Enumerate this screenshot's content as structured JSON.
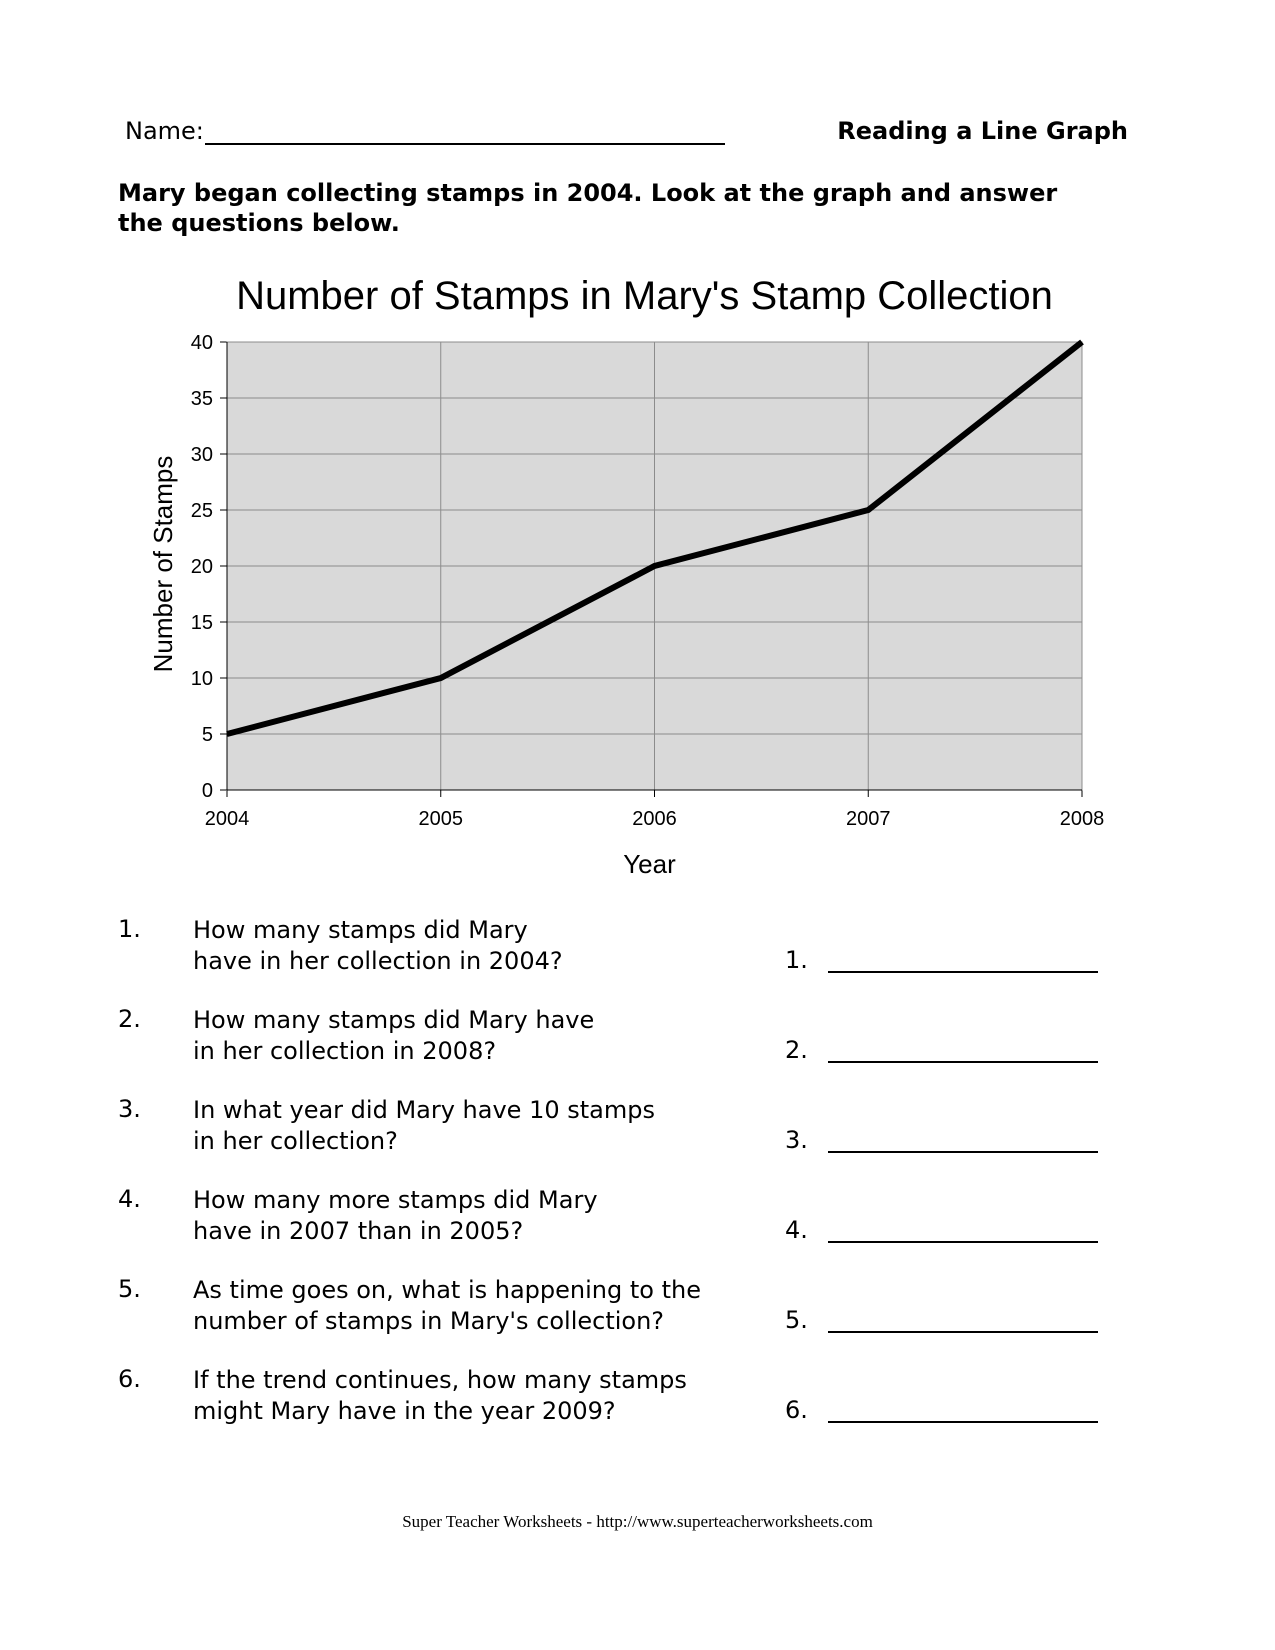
{
  "header": {
    "name_label": "Name:",
    "worksheet_title": "Reading a Line Graph"
  },
  "instructions": "Mary began collecting stamps in 2004.  Look at the graph and answer the questions below.",
  "chart_data": {
    "type": "line",
    "title": "Number of Stamps in Mary's Stamp Collection",
    "xlabel": "Year",
    "ylabel": "Number of Stamps",
    "x": [
      "2004",
      "2005",
      "2006",
      "2007",
      "2008"
    ],
    "series": [
      {
        "values": [
          5,
          10,
          20,
          25,
          40
        ]
      }
    ],
    "ylim": [
      0,
      40
    ],
    "yticks": [
      0,
      5,
      10,
      15,
      20,
      25,
      30,
      35,
      40
    ],
    "grid": true,
    "legend": "none",
    "colors": {
      "plot_background": "#d9d9d9",
      "line": "#000000",
      "grid": "#8c8c8c"
    }
  },
  "questions": [
    {
      "number": "1.",
      "lines": [
        "How many stamps did Mary",
        "have in her collection in 2004?"
      ],
      "answer_number": "1."
    },
    {
      "number": "2.",
      "lines": [
        "How many stamps did Mary have",
        "in her collection in 2008?"
      ],
      "answer_number": "2."
    },
    {
      "number": "3.",
      "lines": [
        "In what year did Mary have 10 stamps",
        "in her collection?"
      ],
      "answer_number": "3."
    },
    {
      "number": "4.",
      "lines": [
        "How many more stamps did Mary",
        "have in 2007 than in 2005?"
      ],
      "answer_number": "4."
    },
    {
      "number": "5.",
      "lines": [
        "As time goes on, what is happening to the",
        "number of stamps in Mary's collection?"
      ],
      "answer_number": "5."
    },
    {
      "number": "6.",
      "lines": [
        "If the trend continues, how many stamps",
        "might Mary have in the year 2009?"
      ],
      "answer_number": "6."
    }
  ],
  "footer": "Super Teacher Worksheets - http://www.superteacherworksheets.com"
}
